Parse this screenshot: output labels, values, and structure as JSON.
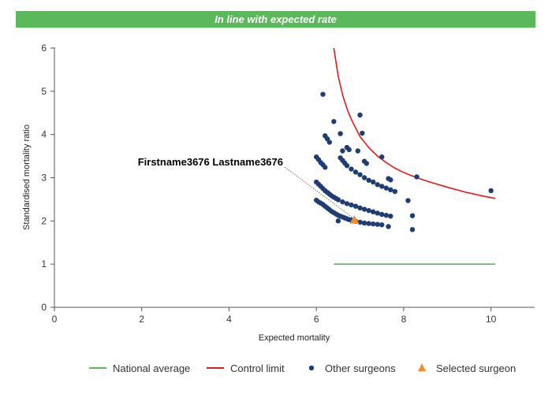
{
  "banner": {
    "title": "In line with expected rate",
    "color": "#5cb85c"
  },
  "chart_data": {
    "type": "scatter",
    "title": "",
    "xlabel": "Expected mortality",
    "ylabel": "Standardised mortality ratio",
    "xlim": [
      0,
      11
    ],
    "ylim": [
      0,
      6
    ],
    "x_ticks": [
      "0",
      "2",
      "4",
      "6",
      "8",
      "10"
    ],
    "y_ticks": [
      "0",
      "1",
      "2",
      "3",
      "4",
      "5",
      "6"
    ],
    "grid": false,
    "legend_position": "bottom",
    "callout_label": "Firstname3676 Lastname3676",
    "series": [
      {
        "name": "National average",
        "kind": "line",
        "color": "#5cb85c",
        "x": [
          6.4,
          10.1
        ],
        "y": [
          1.0,
          1.0
        ]
      },
      {
        "name": "Control limit",
        "kind": "line",
        "color": "#e41a1c",
        "x": [
          6.4,
          6.5,
          6.6,
          6.7,
          6.8,
          7.0,
          7.2,
          7.4,
          7.6,
          7.8,
          8.0,
          8.3,
          8.6,
          9.0,
          9.4,
          9.8,
          10.1
        ],
        "y": [
          6.0,
          5.35,
          4.92,
          4.6,
          4.35,
          3.95,
          3.7,
          3.5,
          3.35,
          3.22,
          3.12,
          3.0,
          2.9,
          2.78,
          2.67,
          2.58,
          2.52
        ]
      },
      {
        "name": "Other surgeons",
        "kind": "scatter",
        "color": "#1f3c73",
        "x": [
          6.0,
          6.05,
          6.1,
          6.15,
          6.2,
          6.25,
          6.3,
          6.35,
          6.4,
          6.45,
          6.5,
          6.55,
          6.6,
          6.65,
          6.7,
          6.75,
          6.8,
          6.9,
          7.0,
          7.1,
          7.2,
          7.3,
          7.4,
          7.5,
          6.0,
          6.05,
          6.1,
          6.15,
          6.2,
          6.25,
          6.3,
          6.35,
          6.4,
          6.45,
          6.5,
          6.6,
          6.7,
          6.8,
          6.9,
          7.0,
          7.1,
          7.2,
          7.3,
          7.4,
          7.5,
          7.6,
          7.7,
          6.0,
          6.05,
          6.1,
          6.15,
          6.2,
          6.55,
          6.6,
          6.65,
          6.7,
          6.8,
          6.9,
          7.0,
          7.1,
          7.2,
          7.3,
          7.4,
          7.5,
          7.6,
          7.7,
          7.8,
          6.2,
          6.25,
          6.3,
          6.6,
          6.7,
          6.75,
          7.1,
          7.15,
          7.5,
          7.65,
          7.7,
          6.15,
          6.4,
          6.55,
          6.95,
          7.05,
          7.0,
          6.5,
          7.65,
          8.1,
          8.3,
          8.2,
          8.2,
          10.0
        ],
        "y": [
          2.48,
          2.44,
          2.41,
          2.38,
          2.34,
          2.3,
          2.26,
          2.22,
          2.19,
          2.16,
          2.13,
          2.11,
          2.09,
          2.07,
          2.05,
          2.03,
          2.02,
          1.99,
          1.97,
          1.95,
          1.94,
          1.93,
          1.92,
          1.91,
          2.9,
          2.85,
          2.8,
          2.75,
          2.7,
          2.66,
          2.62,
          2.58,
          2.55,
          2.52,
          2.49,
          2.44,
          2.4,
          2.37,
          2.34,
          2.3,
          2.27,
          2.24,
          2.21,
          2.18,
          2.15,
          2.13,
          2.11,
          3.48,
          3.42,
          3.35,
          3.3,
          3.24,
          3.46,
          3.4,
          3.34,
          3.28,
          3.2,
          3.13,
          3.07,
          3.0,
          2.94,
          2.9,
          2.84,
          2.8,
          2.76,
          2.72,
          2.68,
          3.97,
          3.9,
          3.82,
          3.62,
          3.7,
          3.65,
          3.38,
          3.33,
          3.48,
          2.98,
          2.95,
          4.93,
          4.3,
          4.02,
          3.62,
          4.03,
          4.45,
          2.0,
          1.87,
          2.47,
          3.02,
          2.12,
          1.8,
          2.7
        ]
      },
      {
        "name": "Selected surgeon",
        "kind": "scatter",
        "marker": "triangle",
        "color": "#f28e2b",
        "x": [
          6.87
        ],
        "y": [
          2.02
        ]
      }
    ]
  }
}
